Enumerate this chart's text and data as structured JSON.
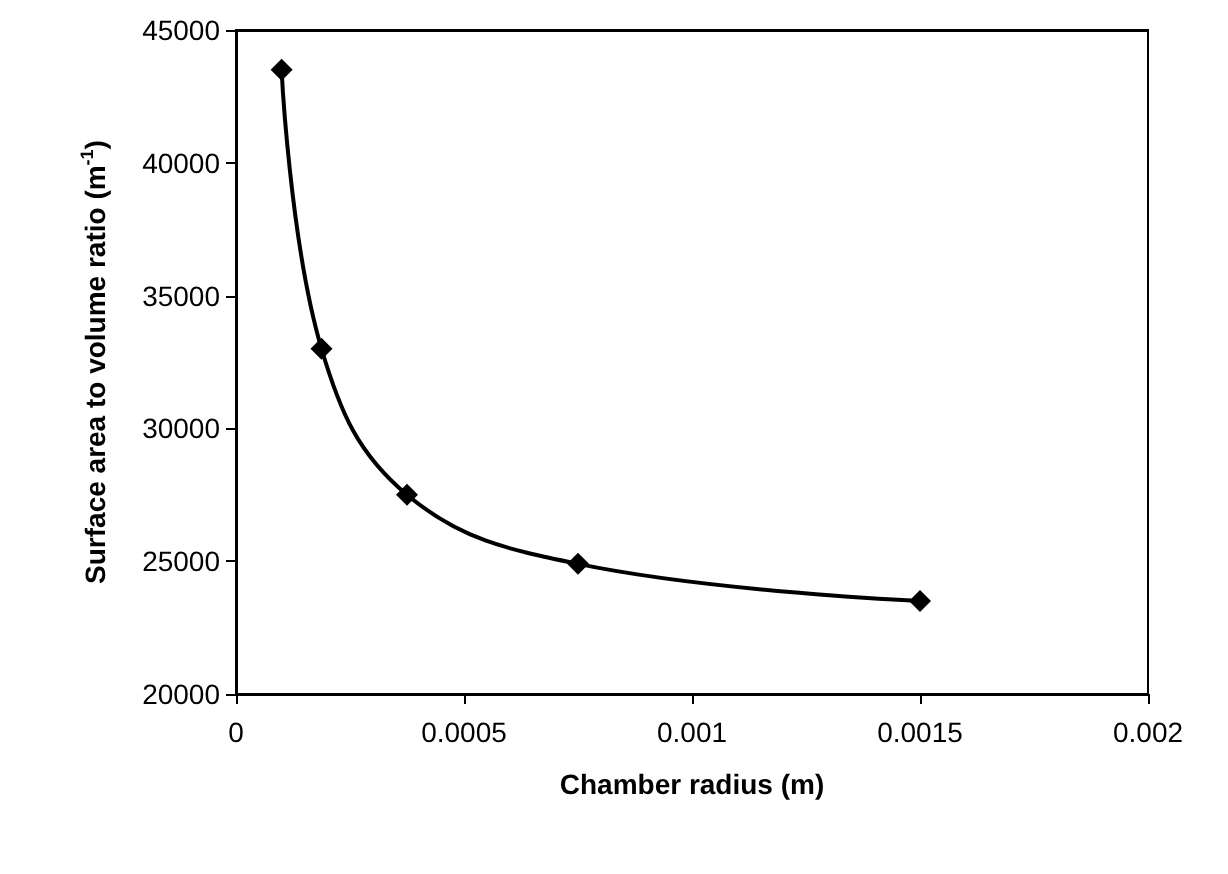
{
  "chart_data": {
    "type": "line",
    "xlabel": "Chamber radius (m)",
    "ylabel": "Surface area to volume ratio (m$^{-1}$)",
    "x": [
      0.0001,
      0.0001875,
      0.000375,
      0.00075,
      0.0015
    ],
    "series": [
      {
        "color": "#000000",
        "values": [
          43500,
          33000,
          27500,
          24900,
          23500
        ]
      }
    ],
    "xlim": [
      0,
      0.002
    ],
    "xticks": [
      0,
      0.0005,
      0.001,
      0.0015,
      0.002
    ],
    "ylim": [
      20000,
      45000
    ],
    "yticks": [
      20000,
      25000,
      30000,
      35000,
      40000,
      45000
    ],
    "marker": "diamond",
    "line_style": "solid"
  }
}
